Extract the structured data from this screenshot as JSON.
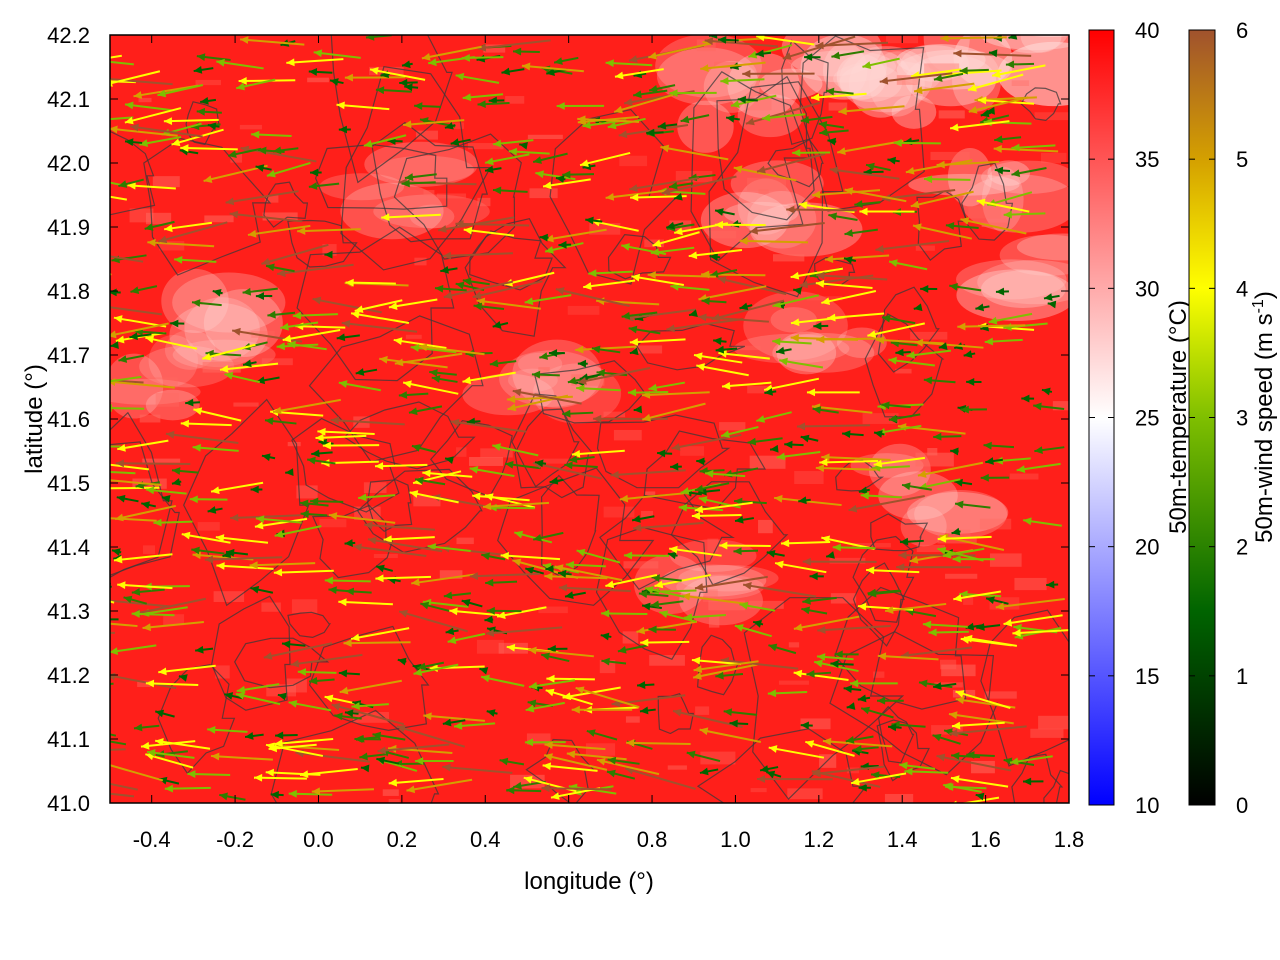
{
  "chart_data": {
    "type": "heatmap",
    "title": "",
    "xlabel": "longitude (°)",
    "ylabel": "latitude (°)",
    "xlim": [
      -0.5,
      1.8
    ],
    "ylim": [
      41.0,
      42.2
    ],
    "xticks": [
      "-0.4",
      "-0.2",
      "0.0",
      "0.2",
      "0.4",
      "0.6",
      "0.8",
      "1.0",
      "1.2",
      "1.4",
      "1.6",
      "1.8"
    ],
    "yticks": [
      "41.0",
      "41.1",
      "41.2",
      "41.3",
      "41.4",
      "41.5",
      "41.6",
      "41.7",
      "41.8",
      "41.9",
      "42.0",
      "42.1",
      "42.2"
    ],
    "layers": [
      "50m-temperature heatmap",
      "terrain contour lines",
      "50m-wind vectors"
    ],
    "wind_direction": "predominantly from east toward west (vectors pointing left)",
    "temperature_colorbar": {
      "label": "50m-temperature (°C)",
      "range": [
        10,
        40
      ],
      "ticks": [
        "10",
        "15",
        "20",
        "25",
        "30",
        "35",
        "40"
      ],
      "colors": [
        "#0000ff",
        "#ffffff",
        "#ff0000"
      ]
    },
    "wind_colorbar": {
      "label": "50m-wind speed (m s-1)",
      "label_main": "50m-wind speed (m s",
      "label_sup": "-1",
      "label_end": ")",
      "range": [
        0,
        6
      ],
      "ticks": [
        "0",
        "1",
        "2",
        "3",
        "4",
        "5",
        "6"
      ],
      "colors": [
        "#000000",
        "#006400",
        "#7fbf00",
        "#ffff00",
        "#d4a000",
        "#a0522d"
      ]
    }
  }
}
